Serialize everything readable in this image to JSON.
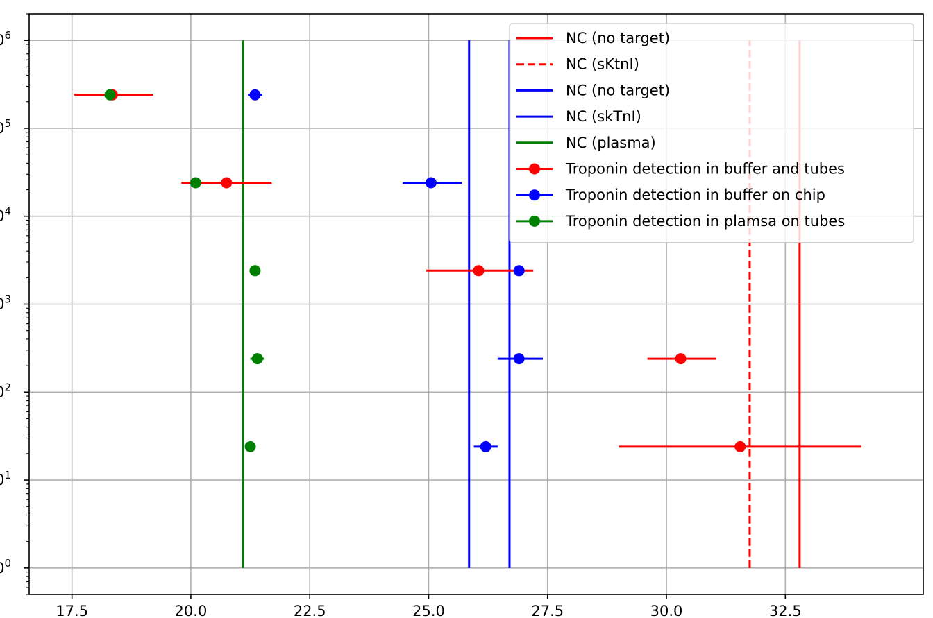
{
  "chart_data": {
    "type": "scatter",
    "xscale": "linear",
    "yscale": "log",
    "xlim": [
      16.6,
      35.4
    ],
    "ylim": [
      0.5,
      2000000
    ],
    "grid": true,
    "legend_position": "top-right",
    "x_ticks": [
      {
        "value": 17.5,
        "label": "17.5"
      },
      {
        "value": 20.0,
        "label": "20.0"
      },
      {
        "value": 22.5,
        "label": "22.5"
      },
      {
        "value": 25.0,
        "label": "25.0"
      },
      {
        "value": 27.5,
        "label": "27.5"
      },
      {
        "value": 30.0,
        "label": "30.0"
      },
      {
        "value": 32.5,
        "label": "32.5"
      }
    ],
    "y_ticks": [
      {
        "value": 1,
        "base": "10",
        "exp": "0"
      },
      {
        "value": 10,
        "base": "10",
        "exp": "1"
      },
      {
        "value": 100,
        "base": "10",
        "exp": "2"
      },
      {
        "value": 1000,
        "base": "10",
        "exp": "3"
      },
      {
        "value": 10000,
        "base": "10",
        "exp": "4"
      },
      {
        "value": 100000,
        "base": "10",
        "exp": "5"
      },
      {
        "value": 1000000,
        "base": "10",
        "exp": "6"
      }
    ],
    "reference_lines": [
      {
        "label": "NC (no target)",
        "x": 32.8,
        "color": "#ff0000",
        "dashed": false,
        "y_range": [
          1,
          1000000
        ]
      },
      {
        "label": "NC (sKtnI)",
        "x": 31.75,
        "color": "#ff0000",
        "dashed": true,
        "y_range": [
          1,
          1000000
        ]
      },
      {
        "label": "NC (no target)",
        "x": 25.85,
        "color": "#0000ff",
        "dashed": false,
        "y_range": [
          1,
          1000000
        ]
      },
      {
        "label": "NC (skTnI)",
        "x": 26.7,
        "color": "#0000ff",
        "dashed": false,
        "y_range": [
          1,
          1000000
        ]
      },
      {
        "label": "NC (plasma)",
        "x": 21.1,
        "color": "#008000",
        "dashed": false,
        "y_range": [
          1,
          1000000
        ]
      }
    ],
    "series": [
      {
        "name": "Troponin detection in buffer and tubes",
        "color": "#ff0000",
        "points": [
          {
            "x": 18.35,
            "y": 240000,
            "xerr": [
              17.55,
              19.2
            ]
          },
          {
            "x": 20.75,
            "y": 24000,
            "xerr": [
              19.8,
              21.7
            ]
          },
          {
            "x": 26.05,
            "y": 2400,
            "xerr": [
              24.95,
              27.2
            ]
          },
          {
            "x": 30.3,
            "y": 240,
            "xerr": [
              29.6,
              31.05
            ]
          },
          {
            "x": 31.55,
            "y": 24,
            "xerr": [
              29.0,
              34.1
            ]
          }
        ]
      },
      {
        "name": "Troponin detection in buffer on chip",
        "color": "#0000ff",
        "points": [
          {
            "x": 21.35,
            "y": 240000,
            "xerr": [
              21.2,
              21.5
            ]
          },
          {
            "x": 25.05,
            "y": 24000,
            "xerr": [
              24.45,
              25.7
            ]
          },
          {
            "x": 26.9,
            "y": 2400,
            "xerr": [
              26.9,
              26.9
            ]
          },
          {
            "x": 26.9,
            "y": 240,
            "xerr": [
              26.45,
              27.4
            ]
          },
          {
            "x": 26.2,
            "y": 24,
            "xerr": [
              25.95,
              26.45
            ]
          }
        ]
      },
      {
        "name": "Troponin detection in plamsa on tubes",
        "color": "#008000",
        "points": [
          {
            "x": 18.3,
            "y": 240000,
            "xerr": [
              18.3,
              18.3
            ]
          },
          {
            "x": 20.1,
            "y": 24000,
            "xerr": [
              20.1,
              20.1
            ]
          },
          {
            "x": 21.35,
            "y": 2400,
            "xerr": [
              21.35,
              21.35
            ]
          },
          {
            "x": 21.4,
            "y": 240,
            "xerr": [
              21.25,
              21.55
            ]
          },
          {
            "x": 21.25,
            "y": 24,
            "xerr": [
              21.25,
              21.25
            ]
          }
        ]
      }
    ]
  }
}
